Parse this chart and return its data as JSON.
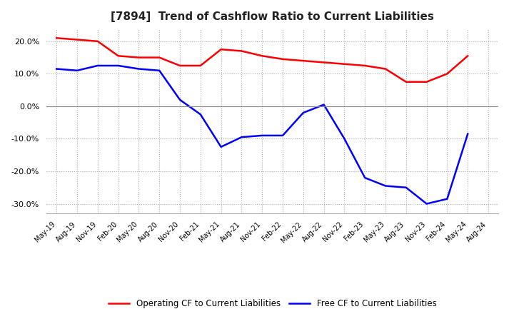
{
  "title": "[7894]  Trend of Cashflow Ratio to Current Liabilities",
  "title_fontsize": 11,
  "x_labels": [
    "May-19",
    "Aug-19",
    "Nov-19",
    "Feb-20",
    "May-20",
    "Aug-20",
    "Nov-20",
    "Feb-21",
    "May-21",
    "Aug-21",
    "Nov-21",
    "Feb-22",
    "May-22",
    "Aug-22",
    "Nov-22",
    "Feb-23",
    "May-23",
    "Aug-23",
    "Nov-23",
    "Feb-24",
    "May-24",
    "Aug-24"
  ],
  "operating_cf": [
    21.0,
    20.5,
    20.0,
    15.5,
    15.0,
    15.0,
    12.5,
    12.5,
    17.5,
    17.0,
    15.5,
    14.5,
    14.0,
    13.5,
    13.0,
    12.5,
    11.5,
    7.5,
    7.5,
    10.0,
    15.5,
    null
  ],
  "free_cf": [
    11.5,
    11.0,
    12.5,
    12.5,
    11.5,
    11.0,
    2.0,
    -2.5,
    -12.5,
    -9.5,
    -9.0,
    -9.0,
    -2.0,
    0.5,
    -10.0,
    -22.0,
    -24.5,
    -25.0,
    -30.0,
    -28.5,
    -8.5,
    null
  ],
  "ylim": [
    -33,
    24
  ],
  "yticks": [
    -30.0,
    -20.0,
    -10.0,
    0.0,
    10.0,
    20.0
  ],
  "operating_color": "#ff0000",
  "free_color": "#0000ff",
  "grid_color": "#aaaaaa",
  "zero_line_color": "#888888",
  "background_color": "#ffffff",
  "legend_operating": "Operating CF to Current Liabilities",
  "legend_free": "Free CF to Current Liabilities"
}
